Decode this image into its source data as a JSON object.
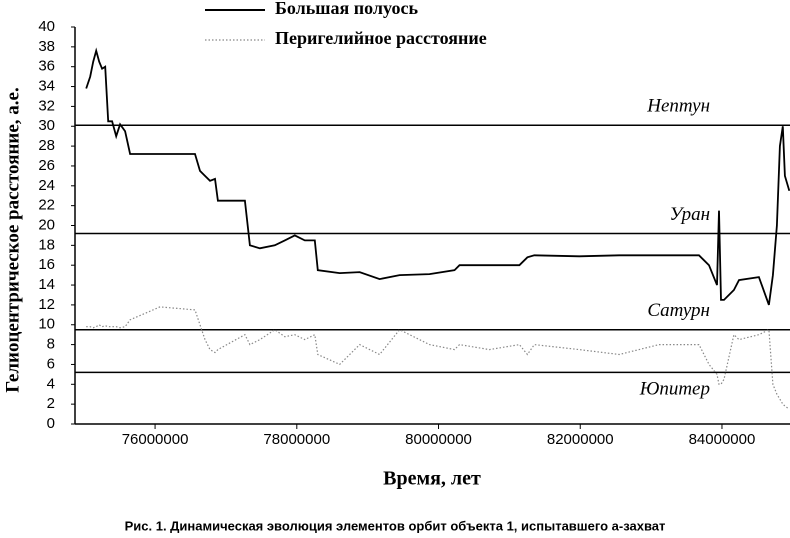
{
  "chart_data": {
    "type": "line",
    "legend": "top",
    "xlabel": "Время, лет",
    "ylabel": "Гелиоцентрическое расстояние, а.е.",
    "caption": "Рис. 1. Динамическая эволюция элементов орбит объекта 1, испытавшего a-захват",
    "xlim": [
      74870000,
      84960000
    ],
    "ylim": [
      0,
      40
    ],
    "xticks": [
      76000000,
      78000000,
      80000000,
      82000000,
      84000000
    ],
    "yticks": [
      0,
      2,
      4,
      6,
      8,
      10,
      12,
      14,
      16,
      18,
      20,
      22,
      24,
      26,
      28,
      30,
      32,
      34,
      36,
      38,
      40
    ],
    "x": [
      75028000,
      75084000,
      75127000,
      75169000,
      75211000,
      75253000,
      75296000,
      75338000,
      75394000,
      75451000,
      75507000,
      75577000,
      75648000,
      76070000,
      76563000,
      76634000,
      76704000,
      76775000,
      76845000,
      76887000,
      77268000,
      77338000,
      77479000,
      77690000,
      77831000,
      77972000,
      78113000,
      78254000,
      78296000,
      78606000,
      78887000,
      79169000,
      79451000,
      79873000,
      80226000,
      80296000,
      80718000,
      81141000,
      81254000,
      81352000,
      81986000,
      82550000,
      83113000,
      83676000,
      83817000,
      83930000,
      83958000,
      83986000,
      84028000,
      84169000,
      84240000,
      84521000,
      84662000,
      84719000,
      84775000,
      84817000,
      84859000,
      84888000,
      84950000
    ],
    "series": [
      {
        "name": "Большая полуось",
        "color": "#000000",
        "style": "solid",
        "values": [
          33.8,
          35,
          36.5,
          37.6,
          36.5,
          35.8,
          36,
          30.5,
          30.5,
          29,
          30.2,
          29.5,
          27.2,
          27.2,
          27.2,
          25.5,
          25,
          24.5,
          24.7,
          22.5,
          22.5,
          18,
          17.7,
          18,
          18.5,
          19,
          18.5,
          18.5,
          15.5,
          15.2,
          15.3,
          14.6,
          15,
          15.1,
          15.5,
          16,
          16,
          16,
          16.8,
          17,
          16.9,
          17,
          17,
          17,
          16,
          14,
          21.5,
          12.5,
          12.5,
          13.5,
          14.5,
          14.8,
          12,
          15,
          20,
          28,
          30,
          25,
          23.5
        ]
      },
      {
        "name": "Перигелийное расстояние",
        "color": "#888888",
        "style": "dotted",
        "values": [
          9.8,
          9.8,
          9.7,
          9.8,
          10,
          9.8,
          9.9,
          9.8,
          9.8,
          9.8,
          9.7,
          9.8,
          10.5,
          11.8,
          11.5,
          10,
          8.5,
          7.5,
          7.2,
          7.5,
          9,
          8,
          8.5,
          9.5,
          8.8,
          9,
          8.5,
          9,
          7,
          6,
          8,
          7,
          9.5,
          8,
          7.5,
          8,
          7.5,
          8,
          7,
          8,
          7.5,
          7,
          8,
          8,
          6,
          5,
          4,
          4,
          4.5,
          9,
          8.5,
          9,
          9.5,
          4,
          3,
          2.5,
          2,
          1.8,
          1.5
        ]
      }
    ],
    "reference_lines": [
      {
        "name": "Нептун",
        "value": 30.1,
        "label_side": "above"
      },
      {
        "name": "Уран",
        "value": 19.2,
        "label_side": "above"
      },
      {
        "name": "Сатурн",
        "value": 9.5,
        "label_side": "above"
      },
      {
        "name": "Юпитер",
        "value": 5.2,
        "label_side": "below"
      }
    ]
  }
}
